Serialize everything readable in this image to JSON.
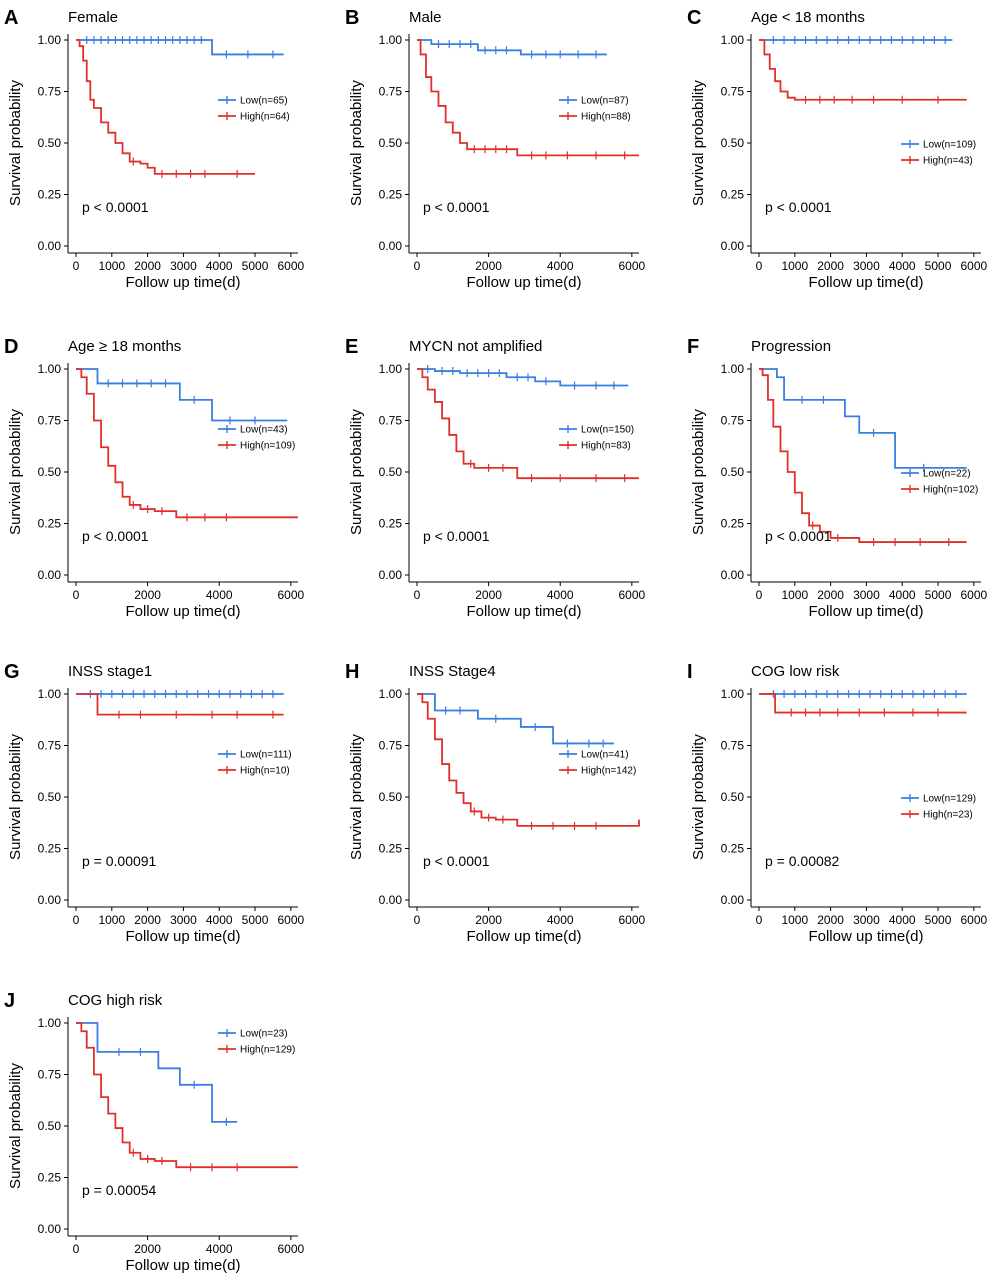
{
  "chart_data": [
    {
      "letter": "A",
      "title": "Female",
      "type": "line",
      "xlabel": "Follow up time(d)",
      "ylabel": "Survival probability",
      "xticks": [
        0,
        1000,
        2000,
        3000,
        4000,
        5000,
        6000
      ],
      "yticks": [
        0.0,
        0.25,
        0.5,
        0.75,
        1.0
      ],
      "xlim": [
        0,
        6200
      ],
      "ylim": [
        0,
        1
      ],
      "pvalue": "p < 0.0001",
      "series": [
        {
          "name": "Low(n=65)",
          "color": "#3b7de0",
          "x": [
            0,
            3800,
            3800,
            5800
          ],
          "y": [
            1.0,
            1.0,
            0.93,
            0.93
          ],
          "censor_x": [
            300,
            500,
            700,
            900,
            1100,
            1300,
            1500,
            1700,
            1900,
            2100,
            2300,
            2500,
            2700,
            2900,
            3100,
            3300,
            3500,
            4200,
            4800,
            5500
          ]
        },
        {
          "name": "High(n=64)",
          "color": "#e0302a",
          "x": [
            0,
            100,
            200,
            300,
            400,
            500,
            700,
            900,
            1100,
            1300,
            1500,
            1800,
            2000,
            2200,
            5000
          ],
          "y": [
            1.0,
            0.97,
            0.9,
            0.8,
            0.71,
            0.67,
            0.6,
            0.55,
            0.5,
            0.45,
            0.41,
            0.4,
            0.38,
            0.35,
            0.35
          ],
          "censor_x": [
            1600,
            2400,
            2800,
            3200,
            3600,
            4500
          ]
        }
      ],
      "legend": "right"
    },
    {
      "letter": "B",
      "title": "Male",
      "type": "line",
      "xlabel": "Follow up time(d)",
      "ylabel": "Survival probability",
      "xticks": [
        0,
        2000,
        4000,
        6000
      ],
      "yticks": [
        0.0,
        0.25,
        0.5,
        0.75,
        1.0
      ],
      "xlim": [
        0,
        6200
      ],
      "ylim": [
        0,
        1
      ],
      "pvalue": "p < 0.0001",
      "series": [
        {
          "name": "Low(n=87)",
          "color": "#3b7de0",
          "x": [
            0,
            400,
            400,
            1700,
            1700,
            2900,
            2900,
            5300
          ],
          "y": [
            1.0,
            1.0,
            0.98,
            0.98,
            0.95,
            0.95,
            0.93,
            0.93
          ],
          "censor_x": [
            600,
            900,
            1200,
            1500,
            1900,
            2200,
            2500,
            3200,
            3600,
            4000,
            4500,
            5000
          ]
        },
        {
          "name": "High(n=88)",
          "color": "#e0302a",
          "x": [
            0,
            100,
            250,
            400,
            600,
            800,
            1000,
            1200,
            1400,
            2800,
            2800,
            6200
          ],
          "y": [
            1.0,
            0.93,
            0.82,
            0.75,
            0.68,
            0.6,
            0.55,
            0.5,
            0.47,
            0.47,
            0.44,
            0.44
          ],
          "censor_x": [
            1600,
            1900,
            2200,
            2500,
            3200,
            3600,
            4200,
            5000,
            5800
          ]
        }
      ],
      "legend": "right"
    },
    {
      "letter": "C",
      "title": "Age < 18 months",
      "type": "line",
      "xlabel": "Follow up time(d)",
      "ylabel": "Survival probability",
      "xticks": [
        0,
        1000,
        2000,
        3000,
        4000,
        5000,
        6000
      ],
      "yticks": [
        0.0,
        0.25,
        0.5,
        0.75,
        1.0
      ],
      "xlim": [
        0,
        6200
      ],
      "ylim": [
        0,
        1
      ],
      "pvalue": "p < 0.0001",
      "series": [
        {
          "name": "Low(n=109)",
          "color": "#3b7de0",
          "x": [
            0,
            5400
          ],
          "y": [
            1.0,
            1.0
          ],
          "censor_x": [
            400,
            700,
            1000,
            1300,
            1600,
            1900,
            2200,
            2500,
            2800,
            3100,
            3400,
            3700,
            4000,
            4300,
            4600,
            4900,
            5200
          ]
        },
        {
          "name": "High(n=43)",
          "color": "#e0302a",
          "x": [
            0,
            150,
            300,
            450,
            600,
            800,
            1000,
            5800
          ],
          "y": [
            1.0,
            0.93,
            0.86,
            0.8,
            0.75,
            0.72,
            0.71,
            0.71
          ],
          "censor_x": [
            1300,
            1700,
            2100,
            2600,
            3200,
            4000,
            5000
          ]
        }
      ],
      "legend": "right-low"
    },
    {
      "letter": "D",
      "title": "Age ≥ 18 months",
      "type": "line",
      "xlabel": "Follow up time(d)",
      "ylabel": "Survival probability",
      "xticks": [
        0,
        2000,
        4000,
        6000
      ],
      "yticks": [
        0.0,
        0.25,
        0.5,
        0.75,
        1.0
      ],
      "xlim": [
        0,
        6200
      ],
      "ylim": [
        0,
        1
      ],
      "pvalue": "p < 0.0001",
      "series": [
        {
          "name": "Low(n=43)",
          "color": "#3b7de0",
          "x": [
            0,
            600,
            600,
            2900,
            2900,
            3800,
            3800,
            5900
          ],
          "y": [
            1.0,
            1.0,
            0.93,
            0.93,
            0.85,
            0.85,
            0.75,
            0.75
          ],
          "censor_x": [
            900,
            1300,
            1700,
            2100,
            2500,
            3300,
            4300,
            5000
          ]
        },
        {
          "name": "High(n=109)",
          "color": "#e0302a",
          "x": [
            0,
            150,
            300,
            500,
            700,
            900,
            1100,
            1300,
            1500,
            1800,
            2200,
            2800,
            6200
          ],
          "y": [
            1.0,
            0.96,
            0.88,
            0.75,
            0.62,
            0.53,
            0.45,
            0.38,
            0.34,
            0.32,
            0.31,
            0.28,
            0.28
          ],
          "censor_x": [
            1600,
            2000,
            2400,
            3100,
            3600,
            4200
          ]
        }
      ],
      "legend": "right"
    },
    {
      "letter": "E",
      "title": "MYCN not amplified",
      "type": "line",
      "xlabel": "Follow up time(d)",
      "ylabel": "Survival probability",
      "xticks": [
        0,
        2000,
        4000,
        6000
      ],
      "yticks": [
        0.0,
        0.25,
        0.5,
        0.75,
        1.0
      ],
      "xlim": [
        0,
        6200
      ],
      "ylim": [
        0,
        1
      ],
      "pvalue": "p < 0.0001",
      "series": [
        {
          "name": "Low(n=150)",
          "color": "#3b7de0",
          "x": [
            0,
            500,
            1200,
            2500,
            3300,
            4000,
            5900
          ],
          "y": [
            1.0,
            0.99,
            0.98,
            0.96,
            0.94,
            0.92,
            0.92
          ],
          "censor_x": [
            300,
            700,
            1000,
            1400,
            1700,
            2000,
            2300,
            2800,
            3100,
            3600,
            4400,
            5000,
            5500
          ]
        },
        {
          "name": "High(n=83)",
          "color": "#e0302a",
          "x": [
            0,
            150,
            300,
            500,
            700,
            900,
            1100,
            1300,
            1600,
            2800,
            2800,
            6200
          ],
          "y": [
            1.0,
            0.96,
            0.9,
            0.84,
            0.76,
            0.68,
            0.6,
            0.54,
            0.52,
            0.52,
            0.47,
            0.47
          ],
          "censor_x": [
            1500,
            2000,
            2400,
            3200,
            4000,
            5000,
            5800
          ]
        }
      ],
      "legend": "right"
    },
    {
      "letter": "F",
      "title": "Progression",
      "type": "line",
      "xlabel": "Follow up time(d)",
      "ylabel": "Survival probability",
      "xticks": [
        0,
        1000,
        2000,
        3000,
        4000,
        5000,
        6000
      ],
      "yticks": [
        0.0,
        0.25,
        0.5,
        0.75,
        1.0
      ],
      "xlim": [
        0,
        6200
      ],
      "ylim": [
        0,
        1
      ],
      "pvalue": "p < 0.0001",
      "series": [
        {
          "name": "Low(n=22)",
          "color": "#3b7de0",
          "x": [
            0,
            500,
            500,
            700,
            700,
            2400,
            2400,
            2800,
            2800,
            3800,
            3800,
            5800
          ],
          "y": [
            1.0,
            1.0,
            0.96,
            0.96,
            0.85,
            0.85,
            0.77,
            0.77,
            0.69,
            0.69,
            0.52,
            0.52
          ],
          "censor_x": [
            1200,
            1800,
            3200,
            4600
          ]
        },
        {
          "name": "High(n=102)",
          "color": "#e0302a",
          "x": [
            0,
            100,
            250,
            400,
            600,
            800,
            1000,
            1200,
            1400,
            1700,
            2000,
            2800,
            2800,
            5800
          ],
          "y": [
            1.0,
            0.97,
            0.85,
            0.72,
            0.6,
            0.5,
            0.4,
            0.3,
            0.24,
            0.21,
            0.18,
            0.18,
            0.16,
            0.16
          ],
          "censor_x": [
            1500,
            2200,
            3200,
            3800,
            4500,
            5300
          ]
        }
      ],
      "legend": "right-low"
    },
    {
      "letter": "G",
      "title": "INSS stage1",
      "type": "line",
      "xlabel": "Follow up time(d)",
      "ylabel": "Survival probability",
      "xticks": [
        0,
        1000,
        2000,
        3000,
        4000,
        5000,
        6000
      ],
      "yticks": [
        0.0,
        0.25,
        0.5,
        0.75,
        1.0
      ],
      "xlim": [
        0,
        6200
      ],
      "ylim": [
        0,
        1
      ],
      "pvalue": "p = 0.00091",
      "series": [
        {
          "name": "Low(n=111)",
          "color": "#3b7de0",
          "x": [
            0,
            5800
          ],
          "y": [
            1.0,
            1.0
          ],
          "censor_x": [
            400,
            700,
            1000,
            1300,
            1600,
            1900,
            2200,
            2500,
            2800,
            3100,
            3400,
            3700,
            4000,
            4300,
            4600,
            4900,
            5200,
            5500
          ]
        },
        {
          "name": "High(n=10)",
          "color": "#e0302a",
          "x": [
            0,
            600,
            600,
            5800
          ],
          "y": [
            1.0,
            1.0,
            0.9,
            0.9
          ],
          "censor_x": [
            1200,
            1800,
            2800,
            3800,
            4500,
            5500
          ]
        }
      ],
      "legend": "right"
    },
    {
      "letter": "H",
      "title": "INSS Stage4",
      "type": "line",
      "xlabel": "Follow up time(d)",
      "ylabel": "Survival probability",
      "xticks": [
        0,
        2000,
        4000,
        6000
      ],
      "yticks": [
        0.0,
        0.25,
        0.5,
        0.75,
        1.0
      ],
      "xlim": [
        0,
        6200
      ],
      "ylim": [
        0,
        1
      ],
      "pvalue": "p < 0.0001",
      "series": [
        {
          "name": "Low(n=41)",
          "color": "#3b7de0",
          "x": [
            0,
            500,
            500,
            1700,
            1700,
            2900,
            2900,
            3800,
            3800,
            5500
          ],
          "y": [
            1.0,
            1.0,
            0.92,
            0.92,
            0.88,
            0.88,
            0.84,
            0.84,
            0.76,
            0.76
          ],
          "censor_x": [
            800,
            1200,
            2200,
            3300,
            4200,
            4800,
            5200
          ]
        },
        {
          "name": "High(n=142)",
          "color": "#e0302a",
          "x": [
            0,
            150,
            300,
            500,
            700,
            900,
            1100,
            1300,
            1500,
            1800,
            2200,
            2800,
            3500,
            6200
          ],
          "y": [
            1.0,
            0.96,
            0.88,
            0.78,
            0.66,
            0.58,
            0.52,
            0.47,
            0.43,
            0.4,
            0.39,
            0.36,
            0.36,
            0.39
          ],
          "censor_x": [
            1600,
            2000,
            2400,
            3200,
            3800,
            4400,
            5000
          ]
        }
      ],
      "legend": "right"
    },
    {
      "letter": "I",
      "title": "COG low risk",
      "type": "line",
      "xlabel": "Follow up time(d)",
      "ylabel": "Survival probability",
      "xticks": [
        0,
        1000,
        2000,
        3000,
        4000,
        5000,
        6000
      ],
      "yticks": [
        0.0,
        0.25,
        0.5,
        0.75,
        1.0
      ],
      "xlim": [
        0,
        6200
      ],
      "ylim": [
        0,
        1
      ],
      "pvalue": "p = 0.00082",
      "series": [
        {
          "name": "Low(n=129)",
          "color": "#3b7de0",
          "x": [
            0,
            5800
          ],
          "y": [
            1.0,
            1.0
          ],
          "censor_x": [
            400,
            700,
            1000,
            1300,
            1600,
            1900,
            2200,
            2500,
            2800,
            3100,
            3400,
            3700,
            4000,
            4300,
            4600,
            4900,
            5200,
            5500
          ]
        },
        {
          "name": "High(n=23)",
          "color": "#e0302a",
          "x": [
            0,
            450,
            450,
            5800
          ],
          "y": [
            1.0,
            1.0,
            0.91,
            0.91
          ],
          "censor_x": [
            900,
            1300,
            1700,
            2200,
            2800,
            3500,
            4300,
            5000
          ]
        }
      ],
      "legend": "right-low"
    },
    {
      "letter": "J",
      "title": "COG high risk",
      "type": "line",
      "xlabel": "Follow up time(d)",
      "ylabel": "Survival probability",
      "xticks": [
        0,
        2000,
        4000,
        6000
      ],
      "yticks": [
        0.0,
        0.25,
        0.5,
        0.75,
        1.0
      ],
      "xlim": [
        0,
        6200
      ],
      "ylim": [
        0,
        1
      ],
      "pvalue": "p = 0.00054",
      "series": [
        {
          "name": "Low(n=23)",
          "color": "#3b7de0",
          "x": [
            0,
            600,
            600,
            2300,
            2300,
            2900,
            2900,
            3800,
            3800,
            4500
          ],
          "y": [
            1.0,
            1.0,
            0.86,
            0.86,
            0.78,
            0.78,
            0.7,
            0.7,
            0.52,
            0.52
          ],
          "censor_x": [
            1200,
            1800,
            3300,
            4200
          ]
        },
        {
          "name": "High(n=129)",
          "color": "#e0302a",
          "x": [
            0,
            150,
            300,
            500,
            700,
            900,
            1100,
            1300,
            1500,
            1800,
            2200,
            2800,
            6200
          ],
          "y": [
            1.0,
            0.96,
            0.88,
            0.75,
            0.64,
            0.56,
            0.49,
            0.42,
            0.37,
            0.34,
            0.33,
            0.3,
            0.3
          ],
          "censor_x": [
            1600,
            2000,
            2400,
            3200,
            3800,
            4500
          ]
        }
      ],
      "legend": "right-top"
    }
  ]
}
